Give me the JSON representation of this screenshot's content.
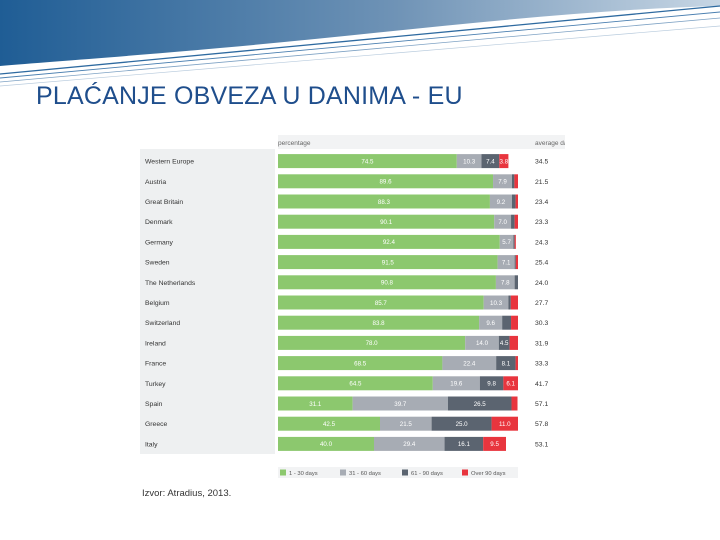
{
  "slide": {
    "title": "PLAĆANJE OBVEZA U DANIMA - EU",
    "source": "Izvor: Atradius, 2013."
  },
  "chart_data": {
    "type": "bar",
    "orientation": "horizontal",
    "stacked": true,
    "header_left": "percentage",
    "header_right": "average days",
    "categories": [
      "Western Europe",
      "Austria",
      "Great Britain",
      "Denmark",
      "Germany",
      "Sweden",
      "The Netherlands",
      "Belgium",
      "Switzerland",
      "Ireland",
      "France",
      "Turkey",
      "Spain",
      "Greece",
      "Italy"
    ],
    "series": [
      {
        "name": "1 - 30 days",
        "color": "#8cc86e",
        "values": [
          74.5,
          89.6,
          88.3,
          90.1,
          92.4,
          91.5,
          90.8,
          85.7,
          83.8,
          78.0,
          68.5,
          64.5,
          31.1,
          42.5,
          40.0
        ]
      },
      {
        "name": "31 - 60 days",
        "color": "#a7acb4",
        "values": [
          10.3,
          7.9,
          9.2,
          7.0,
          5.7,
          7.1,
          7.8,
          10.3,
          9.6,
          14.0,
          22.4,
          19.6,
          39.7,
          21.5,
          29.4
        ]
      },
      {
        "name": "61 - 90 days",
        "color": "#5b6470",
        "values": [
          7.4,
          1.0,
          1.5,
          1.5,
          0.5,
          0.5,
          1.4,
          1.0,
          3.7,
          4.5,
          8.1,
          9.8,
          26.5,
          25.0,
          16.1
        ]
      },
      {
        "name": "Over 90 days",
        "color": "#e8353e",
        "values": [
          3.8,
          1.5,
          1.0,
          1.4,
          0.5,
          0.9,
          0.0,
          3.0,
          2.9,
          3.5,
          1.0,
          6.1,
          2.5,
          11.0,
          9.5
        ]
      }
    ],
    "average_days": [
      "34.5",
      "21.5",
      "23.4",
      "23.3",
      "24.3",
      "25.4",
      "24.0",
      "27.7",
      "30.3",
      "31.9",
      "33.3",
      "41.7",
      "57.1",
      "57.8",
      "53.1"
    ],
    "xlim": [
      0,
      100
    ],
    "legend_position": "bottom",
    "colors": {
      "label_band": "#eef0f1",
      "header_band": "#f2f3f4"
    }
  }
}
